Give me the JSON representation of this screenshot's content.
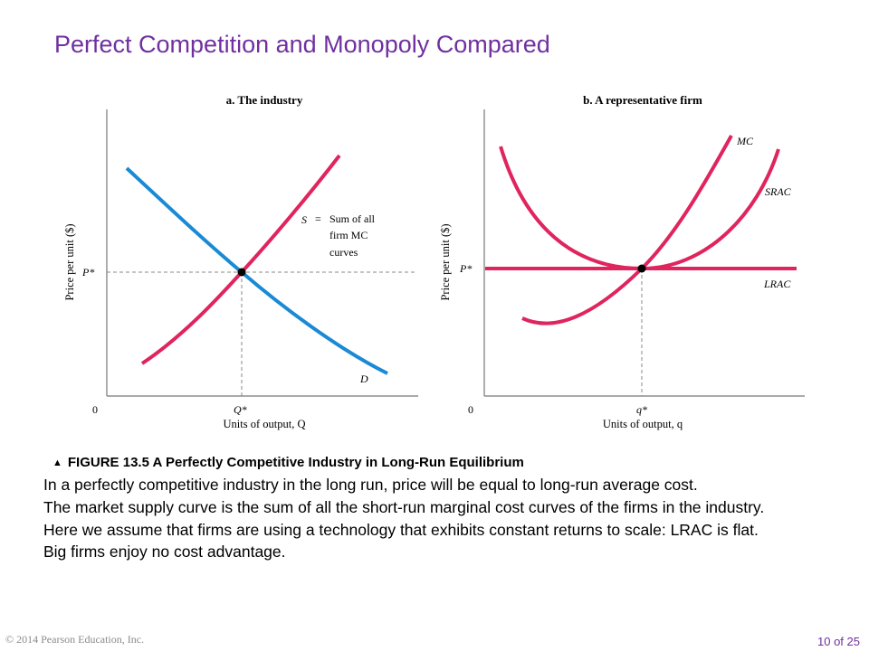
{
  "title": "Perfect Competition and Monopoly Compared",
  "panel_a": {
    "heading": "a. The industry",
    "y_axis_label": "Price per unit ($)",
    "x_axis_label": "Units of output, Q",
    "origin": "0",
    "price_marker": "P*",
    "quantity_marker": "Q*",
    "supply_label": "S",
    "supply_equals": "=",
    "supply_note_lines": [
      "Sum of all",
      "firm MC",
      "curves"
    ],
    "demand_label": "D"
  },
  "panel_b": {
    "heading": "b. A representative firm",
    "y_axis_label": "Price per unit ($)",
    "x_axis_label": "Units of output, q",
    "origin": "0",
    "price_marker": "P*",
    "quantity_marker": "q*",
    "mc_label": "MC",
    "srac_label": "SRAC",
    "lrac_label": "LRAC"
  },
  "caption": {
    "figure": "FIGURE 13.5",
    "text": "A Perfectly Competitive Industry in Long-Run Equilibrium"
  },
  "body": [
    "In a perfectly competitive industry in the long run, price will be equal to long-run average cost.",
    "The market supply curve is the sum of all the short-run marginal cost curves of the firms in the industry.",
    "Here we assume that firms are using a technology that exhibits constant returns to scale: LRAC is flat.",
    "Big firms enjoy no cost advantage."
  ],
  "footer": {
    "copyright": "© 2014 Pearson Education, Inc.",
    "page": "10 of 25"
  },
  "colors": {
    "title": "#7030a0",
    "supply_curve": "#e0245e",
    "demand_curve": "#1a8ad4",
    "axis": "#777777"
  }
}
